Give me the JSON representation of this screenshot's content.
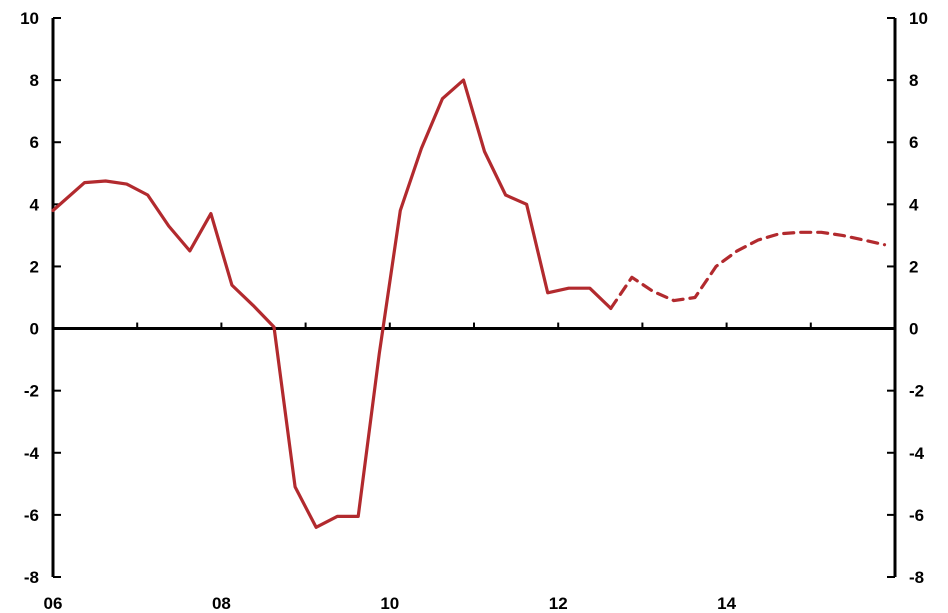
{
  "chart_data": {
    "type": "line",
    "title": "",
    "xlabel": "",
    "ylabel": "",
    "xlim": [
      2006,
      2016
    ],
    "ylim": [
      -8,
      10
    ],
    "x_tick_values": [
      2006,
      2008,
      2010,
      2012,
      2014
    ],
    "x_tick_labels": [
      "06",
      "08",
      "10",
      "12",
      "14"
    ],
    "x_minor_ticks": [
      2007,
      2009,
      2011,
      2013,
      2015
    ],
    "y_ticks": [
      10,
      8,
      6,
      4,
      2,
      0,
      -2,
      -4,
      -6,
      -8
    ],
    "y_tick_labels": [
      "10",
      "8",
      "6",
      "4",
      "2",
      "0",
      "-2",
      "-4",
      "-6",
      "-8"
    ],
    "y_axis_right": true,
    "grid": false,
    "legend": "none",
    "color": "#b22a2e",
    "series": [
      {
        "style": "solid",
        "x": [
          2006.0,
          2006.375,
          2006.625,
          2006.875,
          2007.125,
          2007.375,
          2007.625,
          2007.875,
          2008.125,
          2008.375,
          2008.625,
          2008.875,
          2009.125,
          2009.375,
          2009.625,
          2009.875,
          2010.125,
          2010.375,
          2010.625,
          2010.875,
          2011.125,
          2011.375,
          2011.625,
          2011.875,
          2012.125,
          2012.375,
          2012.625
        ],
        "y": [
          3.8,
          4.7,
          4.75,
          4.65,
          4.3,
          3.3,
          2.5,
          3.7,
          1.4,
          0.75,
          0.05,
          -5.1,
          -6.4,
          -6.05,
          -6.05,
          -0.8,
          3.8,
          5.8,
          7.4,
          8.0,
          5.7,
          4.3,
          4.0,
          1.15,
          1.3,
          1.3,
          0.65
        ]
      },
      {
        "style": "dashed",
        "x": [
          2012.625,
          2012.875,
          2013.125,
          2013.375,
          2013.625,
          2013.875,
          2014.125,
          2014.375,
          2014.625,
          2014.875,
          2015.125,
          2015.375,
          2015.625,
          2015.875
        ],
        "y": [
          0.65,
          1.65,
          1.2,
          0.9,
          1.0,
          2.0,
          2.5,
          2.85,
          3.05,
          3.1,
          3.1,
          3.0,
          2.85,
          2.7
        ]
      }
    ]
  }
}
